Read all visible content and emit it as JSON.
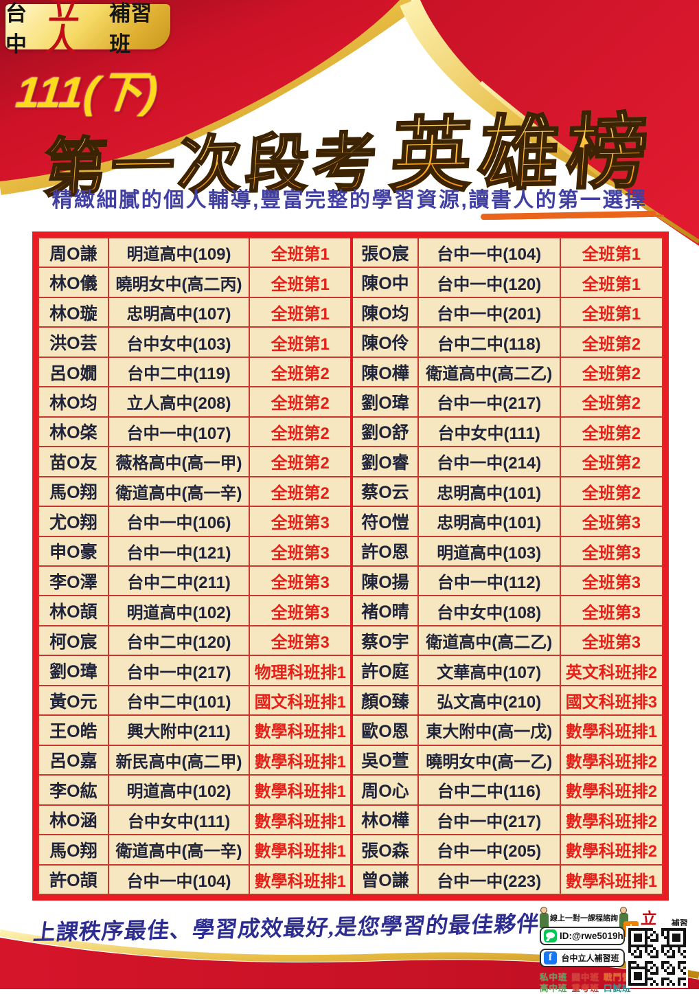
{
  "header": {
    "logo": {
      "prefix": "台中",
      "brand": "立人",
      "suffix": "補習班"
    },
    "term": "111(下)",
    "title_small": "第一次段考",
    "title_large": "英雄榜",
    "subtitle": "精緻細膩的個人輔導,豐富完整的學習資源,讀書人的第一選擇"
  },
  "table": {
    "rows": [
      {
        "n1": "周O謙",
        "s1": "明道高中(109)",
        "r1": "全班第1",
        "n2": "張O宸",
        "s2": "台中一中(104)",
        "r2": "全班第1"
      },
      {
        "n1": "林O儀",
        "s1": "曉明女中(高二丙)",
        "r1": "全班第1",
        "n2": "陳O中",
        "s2": "台中一中(120)",
        "r2": "全班第1"
      },
      {
        "n1": "林O璇",
        "s1": "忠明高中(107)",
        "r1": "全班第1",
        "n2": "陳O均",
        "s2": "台中一中(201)",
        "r2": "全班第1"
      },
      {
        "n1": "洪O芸",
        "s1": "台中女中(103)",
        "r1": "全班第1",
        "n2": "陳O伶",
        "s2": "台中二中(118)",
        "r2": "全班第2"
      },
      {
        "n1": "呂O嫺",
        "s1": "台中二中(119)",
        "r1": "全班第2",
        "n2": "陳O樺",
        "s2": "衛道高中(高二乙)",
        "r2": "全班第2"
      },
      {
        "n1": "林O均",
        "s1": "立人高中(208)",
        "r1": "全班第2",
        "n2": "劉O瑋",
        "s2": "台中一中(217)",
        "r2": "全班第2"
      },
      {
        "n1": "林O棨",
        "s1": "台中一中(107)",
        "r1": "全班第2",
        "n2": "劉O舒",
        "s2": "台中女中(111)",
        "r2": "全班第2"
      },
      {
        "n1": "苗O友",
        "s1": "薇格高中(高一甲)",
        "r1": "全班第2",
        "n2": "劉O睿",
        "s2": "台中一中(214)",
        "r2": "全班第2"
      },
      {
        "n1": "馬O翔",
        "s1": "衛道高中(高一辛)",
        "r1": "全班第2",
        "n2": "蔡O云",
        "s2": "忠明高中(101)",
        "r2": "全班第2"
      },
      {
        "n1": "尤O翔",
        "s1": "台中一中(106)",
        "r1": "全班第3",
        "n2": "符O愷",
        "s2": "忠明高中(101)",
        "r2": "全班第3"
      },
      {
        "n1": "申O豪",
        "s1": "台中一中(121)",
        "r1": "全班第3",
        "n2": "許O恩",
        "s2": "明道高中(103)",
        "r2": "全班第3"
      },
      {
        "n1": "李O澤",
        "s1": "台中二中(211)",
        "r1": "全班第3",
        "n2": "陳O揚",
        "s2": "台中一中(112)",
        "r2": "全班第3"
      },
      {
        "n1": "林O頡",
        "s1": "明道高中(102)",
        "r1": "全班第3",
        "n2": "褚O晴",
        "s2": "台中女中(108)",
        "r2": "全班第3"
      },
      {
        "n1": "柯O宸",
        "s1": "台中二中(120)",
        "r1": "全班第3",
        "n2": "蔡O宇",
        "s2": "衛道高中(高二乙)",
        "r2": "全班第3"
      },
      {
        "n1": "劉O瑋",
        "s1": "台中一中(217)",
        "r1": "物理科班排1",
        "n2": "許O庭",
        "s2": "文華高中(107)",
        "r2": "英文科班排2"
      },
      {
        "n1": "黃O元",
        "s1": "台中二中(101)",
        "r1": "國文科班排1",
        "n2": "顏O臻",
        "s2": "弘文高中(210)",
        "r2": "國文科班排3"
      },
      {
        "n1": "王O皓",
        "s1": "興大附中(211)",
        "r1": "數學科班排1",
        "n2": "歐O恩",
        "s2": "東大附中(高一戊)",
        "r2": "數學科班排1"
      },
      {
        "n1": "呂O嘉",
        "s1": "新民高中(高二甲)",
        "r1": "數學科班排1",
        "n2": "吳O萱",
        "s2": "曉明女中(高一乙)",
        "r2": "數學科班排2"
      },
      {
        "n1": "李O紘",
        "s1": "明道高中(102)",
        "r1": "數學科班排1",
        "n2": "周O心",
        "s2": "台中二中(116)",
        "r2": "數學科班排2"
      },
      {
        "n1": "林O涵",
        "s1": "台中女中(111)",
        "r1": "數學科班排1",
        "n2": "林O樺",
        "s2": "台中一中(217)",
        "r2": "數學科班排2"
      },
      {
        "n1": "馬O翔",
        "s1": "衛道高中(高一辛)",
        "r1": "數學科班排1",
        "n2": "張O森",
        "s2": "台中一中(205)",
        "r2": "數學科班排2"
      },
      {
        "n1": "許O頡",
        "s1": "台中一中(104)",
        "r1": "數學科班排1",
        "n2": "曾O謙",
        "s2": "台中一中(223)",
        "r2": "數學科班排1"
      }
    ]
  },
  "footer": {
    "slogan": "上課秩序最佳、學習成效最好,是您學習的最佳夥伴",
    "consult_label": "線上一對一課程諮詢",
    "line_id": "ID:@rwe5019h",
    "fb_label": "台中立人補習班",
    "fb_icon_glyph": "f",
    "brand": {
      "icon_glyph": "人",
      "name": "立人",
      "suffix": "補習班"
    },
    "categories_line1": [
      {
        "text": "私中班",
        "color": "#57a257"
      },
      {
        "text": "國中班",
        "color": "#d2382c"
      },
      {
        "text": "戰鬥營",
        "color": "#e2662a"
      }
    ],
    "categories_line2": [
      {
        "text": "高中班",
        "color": "#57a257"
      },
      {
        "text": "重考班",
        "color": "#d2382c"
      },
      {
        "text": "口試班",
        "color": "#2f8f8f"
      }
    ]
  },
  "colors": {
    "poster_red": "#d21629",
    "gold": "#e3b23a",
    "table_bg": "#f6e7c0",
    "table_frame": "#ea1c23",
    "rank_red": "#e62019",
    "text_dark": "#20243a"
  }
}
